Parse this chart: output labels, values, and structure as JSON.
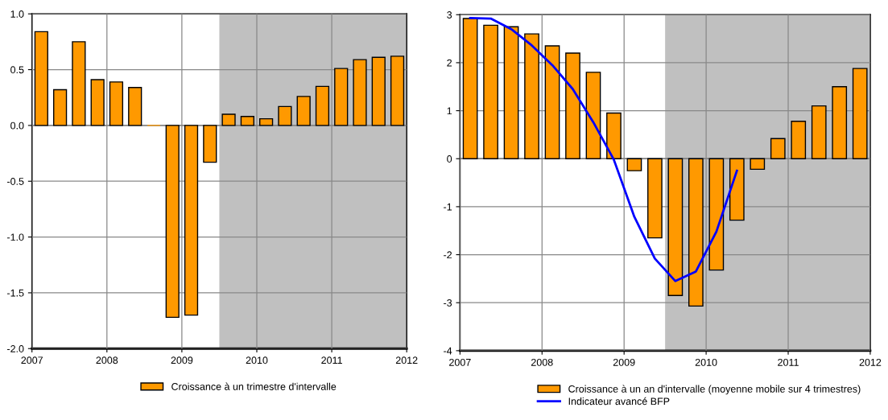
{
  "chart_data": [
    {
      "type": "bar",
      "x": [
        2007.125,
        2007.375,
        2007.625,
        2007.875,
        2008.125,
        2008.375,
        2008.625,
        2008.875,
        2009.125,
        2009.375,
        2009.625,
        2009.875,
        2010.125,
        2010.375,
        2010.625,
        2010.875,
        2011.125,
        2011.375,
        2011.625,
        2011.875
      ],
      "series": [
        {
          "name": "Croissance à un trimestre d'intervalle",
          "color": "#ff9900",
          "values": [
            0.84,
            0.32,
            0.75,
            0.41,
            0.39,
            0.34,
            0.0,
            -1.72,
            -1.7,
            -0.33,
            0.1,
            0.08,
            0.06,
            0.17,
            0.26,
            0.35,
            0.51,
            0.59,
            0.61,
            0.62
          ]
        }
      ],
      "xlim": [
        2007,
        2012
      ],
      "xticks": [
        2007,
        2008,
        2009,
        2010,
        2011,
        2012
      ],
      "ylim": [
        -2.0,
        1.0
      ],
      "yticks": [
        {
          "value": -2,
          "label": "-2.0"
        },
        {
          "value": -1.5,
          "label": "-1.5"
        },
        {
          "value": -1,
          "label": "-1.0"
        },
        {
          "value": -0.5,
          "label": "-0.5"
        },
        {
          "value": 0,
          "label": "0.0"
        },
        {
          "value": 0.5,
          "label": "0.5"
        },
        {
          "value": 1,
          "label": "1.0"
        }
      ],
      "bands": [
        {
          "axis": "x",
          "from": 2009.5,
          "to": 2012,
          "color": "#c0c0c0"
        }
      ],
      "grid": true,
      "legend": "bottom"
    },
    {
      "type": "bar",
      "x": [
        2007.125,
        2007.375,
        2007.625,
        2007.875,
        2008.125,
        2008.375,
        2008.625,
        2008.875,
        2009.125,
        2009.375,
        2009.625,
        2009.875,
        2010.125,
        2010.375,
        2010.625,
        2010.875,
        2011.125,
        2011.375,
        2011.625,
        2011.875
      ],
      "series": [
        {
          "name": "Croissance à un an d'intervalle (moyenne mobile sur 4 trimestres)",
          "color": "#ff9900",
          "values": [
            2.92,
            2.78,
            2.75,
            2.6,
            2.35,
            2.2,
            1.8,
            0.95,
            -0.25,
            -1.65,
            -2.85,
            -3.07,
            -2.32,
            -1.28,
            -0.22,
            0.42,
            0.78,
            1.1,
            1.5,
            1.88
          ]
        },
        {
          "name": "Indicateur avancé BFP",
          "type": "line",
          "color": "#0000ff",
          "x": [
            2007.125,
            2007.375,
            2007.625,
            2007.875,
            2008.125,
            2008.375,
            2008.625,
            2008.875,
            2009.125,
            2009.375,
            2009.625,
            2009.875,
            2010.125,
            2010.375
          ],
          "values": [
            2.93,
            2.92,
            2.7,
            2.36,
            1.95,
            1.45,
            0.76,
            -0.02,
            -1.21,
            -2.08,
            -2.55,
            -2.35,
            -1.52,
            -0.25
          ]
        }
      ],
      "xlim": [
        2007,
        2012
      ],
      "xticks": [
        2007,
        2008,
        2009,
        2010,
        2011,
        2012
      ],
      "ylim": [
        -4,
        3
      ],
      "yticks": [
        -4,
        -3,
        -2,
        -1,
        0,
        1,
        2,
        3
      ],
      "bands": [
        {
          "axis": "x",
          "from": 2009.5,
          "to": 2012,
          "color": "#c0c0c0"
        }
      ],
      "grid": true,
      "legend": "bottom"
    }
  ]
}
